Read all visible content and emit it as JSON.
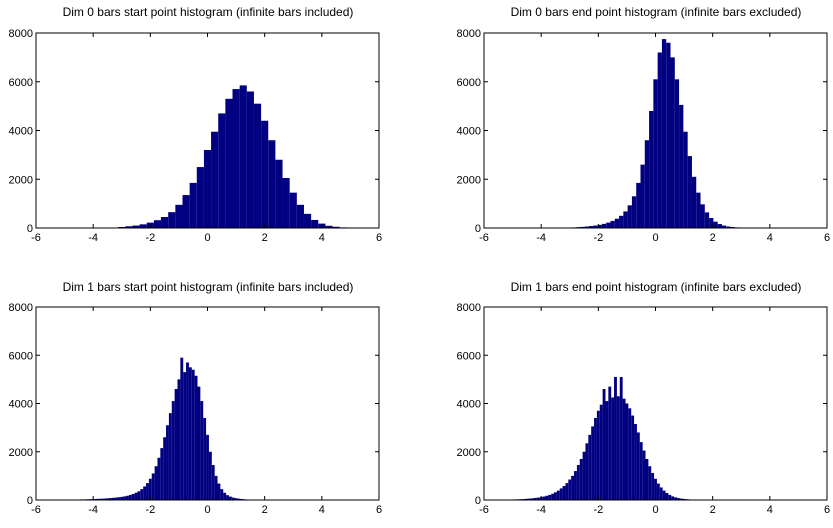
{
  "colors": {
    "bar": "#000080",
    "axis": "#000000",
    "background": "#ffffff"
  },
  "chart_data": [
    {
      "type": "bar",
      "title": "Dim 0 bars start point histogram (infinite bars included)",
      "xlim": [
        -6,
        6
      ],
      "ylim": [
        0,
        8000
      ],
      "xticks": [
        -6,
        -4,
        -2,
        0,
        2,
        4,
        6
      ],
      "yticks": [
        0,
        2000,
        4000,
        6000,
        8000
      ],
      "xtick_labels": [
        "-6",
        "-4",
        "-2",
        "0",
        "2",
        "4",
        "6"
      ],
      "ytick_labels": [
        "0",
        "2000",
        "4000",
        "6000",
        "8000"
      ],
      "bin_width": 0.25,
      "x": [
        -3.0,
        -2.75,
        -2.5,
        -2.25,
        -2.0,
        -1.75,
        -1.5,
        -1.25,
        -1.0,
        -0.75,
        -0.5,
        -0.25,
        0.0,
        0.25,
        0.5,
        0.75,
        1.0,
        1.25,
        1.5,
        1.75,
        2.0,
        2.25,
        2.5,
        2.75,
        3.0,
        3.25,
        3.5,
        3.75,
        4.0,
        4.25,
        4.5,
        4.75,
        5.0
      ],
      "values": [
        40,
        70,
        100,
        150,
        220,
        320,
        450,
        650,
        950,
        1350,
        1850,
        2500,
        3200,
        3950,
        4700,
        5300,
        5700,
        5850,
        5600,
        5100,
        4400,
        3600,
        2800,
        2050,
        1450,
        950,
        580,
        330,
        180,
        90,
        50,
        25,
        10
      ]
    },
    {
      "type": "bar",
      "title": "Dim 0 bars end point histogram (infinite bars excluded)",
      "xlim": [
        -6,
        6
      ],
      "ylim": [
        0,
        8000
      ],
      "xticks": [
        -6,
        -4,
        -2,
        0,
        2,
        4,
        6
      ],
      "yticks": [
        0,
        2000,
        4000,
        6000,
        8000
      ],
      "xtick_labels": [
        "-6",
        "-4",
        "-2",
        "0",
        "2",
        "4",
        "6"
      ],
      "ytick_labels": [
        "0",
        "2000",
        "4000",
        "6000",
        "8000"
      ],
      "bin_width": 0.15,
      "x": [
        -3.0,
        -2.85,
        -2.7,
        -2.55,
        -2.4,
        -2.25,
        -2.1,
        -1.95,
        -1.8,
        -1.65,
        -1.5,
        -1.35,
        -1.2,
        -1.05,
        -0.9,
        -0.75,
        -0.6,
        -0.45,
        -0.3,
        -0.15,
        0.0,
        0.15,
        0.3,
        0.45,
        0.6,
        0.75,
        0.9,
        1.05,
        1.2,
        1.35,
        1.5,
        1.65,
        1.8,
        1.95,
        2.1,
        2.25,
        2.4,
        2.55,
        2.7,
        2.85,
        3.0,
        3.15,
        3.3,
        3.45,
        3.6,
        3.75,
        3.9,
        4.05,
        4.2
      ],
      "values": [
        20,
        25,
        35,
        45,
        60,
        80,
        100,
        130,
        170,
        220,
        290,
        380,
        500,
        680,
        930,
        1300,
        1850,
        2600,
        3600,
        4800,
        6100,
        7200,
        7750,
        7600,
        7000,
        6100,
        5050,
        3950,
        2950,
        2100,
        1450,
        970,
        640,
        410,
        260,
        160,
        100,
        60,
        40,
        25,
        15,
        10,
        8,
        6,
        5,
        4,
        3,
        3,
        2
      ]
    },
    {
      "type": "bar",
      "title": "Dim 1 bars start point histogram (infinite bars included)",
      "xlim": [
        -6,
        6
      ],
      "ylim": [
        0,
        8000
      ],
      "xticks": [
        -6,
        -4,
        -2,
        0,
        2,
        4,
        6
      ],
      "yticks": [
        0,
        2000,
        4000,
        6000,
        8000
      ],
      "xtick_labels": [
        "-6",
        "-4",
        "-2",
        "0",
        "2",
        "4",
        "6"
      ],
      "ytick_labels": [
        "0",
        "2000",
        "4000",
        "6000",
        "8000"
      ],
      "bin_width": 0.1,
      "x": [
        -4.5,
        -4.4,
        -4.3,
        -4.2,
        -4.1,
        -4.0,
        -3.9,
        -3.8,
        -3.7,
        -3.6,
        -3.5,
        -3.4,
        -3.3,
        -3.2,
        -3.1,
        -3.0,
        -2.9,
        -2.8,
        -2.7,
        -2.6,
        -2.5,
        -2.4,
        -2.3,
        -2.2,
        -2.1,
        -2.0,
        -1.9,
        -1.8,
        -1.7,
        -1.6,
        -1.5,
        -1.4,
        -1.3,
        -1.2,
        -1.1,
        -1.0,
        -0.9,
        -0.8,
        -0.7,
        -0.6,
        -0.5,
        -0.4,
        -0.3,
        -0.2,
        -0.1,
        0.0,
        0.1,
        0.2,
        0.3,
        0.4,
        0.5,
        0.6,
        0.7,
        0.8,
        0.9,
        1.0,
        1.1,
        1.2,
        1.3,
        1.4,
        1.5,
        1.6,
        1.7,
        1.8,
        1.9,
        2.0
      ],
      "values": [
        20,
        25,
        25,
        30,
        35,
        40,
        45,
        50,
        55,
        60,
        70,
        80,
        90,
        100,
        115,
        130,
        150,
        175,
        210,
        250,
        300,
        360,
        450,
        560,
        700,
        880,
        1100,
        1400,
        1750,
        2150,
        2600,
        3100,
        3600,
        4100,
        4600,
        5000,
        5900,
        5300,
        5700,
        5500,
        5400,
        5150,
        4700,
        4100,
        3400,
        2700,
        2000,
        1450,
        1000,
        680,
        450,
        300,
        200,
        140,
        100,
        75,
        55,
        40,
        30,
        22,
        16,
        12,
        9,
        7,
        5,
        4
      ]
    },
    {
      "type": "bar",
      "title": "Dim 1 bars end point histogram (infinite bars excluded)",
      "xlim": [
        -6,
        6
      ],
      "ylim": [
        0,
        8000
      ],
      "xticks": [
        -6,
        -4,
        -2,
        0,
        2,
        4,
        6
      ],
      "yticks": [
        0,
        2000,
        4000,
        6000,
        8000
      ],
      "xtick_labels": [
        "-6",
        "-4",
        "-2",
        "0",
        "2",
        "4",
        "6"
      ],
      "ytick_labels": [
        "0",
        "2000",
        "4000",
        "6000",
        "8000"
      ],
      "bin_width": 0.1,
      "x": [
        -5.0,
        -4.9,
        -4.8,
        -4.7,
        -4.6,
        -4.5,
        -4.4,
        -4.3,
        -4.2,
        -4.1,
        -4.0,
        -3.9,
        -3.8,
        -3.7,
        -3.6,
        -3.5,
        -3.4,
        -3.3,
        -3.2,
        -3.1,
        -3.0,
        -2.9,
        -2.8,
        -2.7,
        -2.6,
        -2.5,
        -2.4,
        -2.3,
        -2.2,
        -2.1,
        -2.0,
        -1.9,
        -1.8,
        -1.7,
        -1.6,
        -1.5,
        -1.4,
        -1.3,
        -1.2,
        -1.1,
        -1.0,
        -0.9,
        -0.8,
        -0.7,
        -0.6,
        -0.5,
        -0.4,
        -0.3,
        -0.2,
        -0.1,
        0.0,
        0.1,
        0.2,
        0.3,
        0.4,
        0.5,
        0.6,
        0.7,
        0.8,
        0.9,
        1.0,
        1.1,
        1.2,
        1.3,
        1.4,
        1.5,
        1.6,
        1.7,
        1.8,
        1.9,
        2.0
      ],
      "values": [
        20,
        25,
        30,
        35,
        40,
        50,
        60,
        70,
        85,
        100,
        120,
        145,
        175,
        210,
        260,
        320,
        390,
        480,
        580,
        700,
        850,
        1000,
        1200,
        1450,
        1700,
        2000,
        2350,
        2700,
        3050,
        3400,
        3700,
        3950,
        4600,
        4100,
        4700,
        4250,
        5100,
        4300,
        5100,
        4200,
        4000,
        3800,
        3500,
        3150,
        2800,
        2400,
        2050,
        1700,
        1400,
        1120,
        880,
        680,
        520,
        390,
        290,
        210,
        150,
        110,
        80,
        60,
        45,
        33,
        24,
        18,
        14,
        10,
        8,
        6,
        5,
        4,
        3
      ]
    }
  ]
}
